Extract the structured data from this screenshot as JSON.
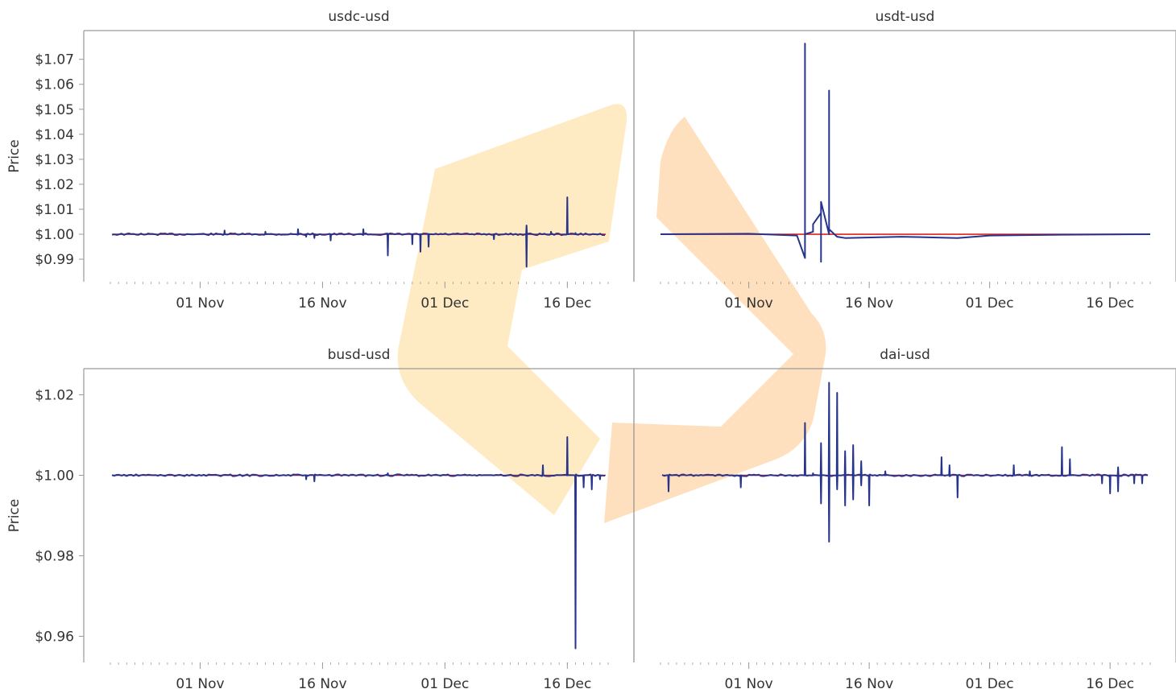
{
  "colors": {
    "series": "#27348b",
    "reference": "#e02020",
    "axis": "#999999",
    "watermark_a": "#ffd27a",
    "watermark_b": "#ffb25c"
  },
  "chart_data": [
    {
      "type": "line",
      "title": "usdc-usd",
      "xlabel": "",
      "ylabel": "Price",
      "y_tick_labels": [
        "$1.07",
        "$1.06",
        "$1.05",
        "$1.04",
        "$1.03",
        "$1.02",
        "$1.01",
        "$1.00",
        "$0.99"
      ],
      "x_tick_labels": [
        "01 Nov",
        "16 Nov",
        "01 Dec",
        "16 Dec"
      ],
      "ylim": [
        0.981,
        1.0815
      ],
      "x_range": [
        "2022-10-21",
        "2022-12-21"
      ],
      "reference": 1.0,
      "baseline": 1.0,
      "spikes": [
        {
          "x": "2022-11-04",
          "y": 1.0015
        },
        {
          "x": "2022-11-09",
          "y": 1.001
        },
        {
          "x": "2022-11-13",
          "y": 1.002
        },
        {
          "x": "2022-11-14",
          "y": 0.999
        },
        {
          "x": "2022-11-15",
          "y": 0.9985
        },
        {
          "x": "2022-11-17",
          "y": 0.9975
        },
        {
          "x": "2022-11-21",
          "y": 1.002
        },
        {
          "x": "2022-11-24",
          "y": 0.9915
        },
        {
          "x": "2022-11-27",
          "y": 0.996
        },
        {
          "x": "2022-11-28",
          "y": 0.993
        },
        {
          "x": "2022-11-29",
          "y": 0.995
        },
        {
          "x": "2022-12-07",
          "y": 0.998
        },
        {
          "x": "2022-12-11",
          "y": 1.0035
        },
        {
          "x": "2022-12-11",
          "y": 0.987
        },
        {
          "x": "2022-12-14",
          "y": 1.001
        },
        {
          "x": "2022-12-16",
          "y": 1.0148
        },
        {
          "x": "2022-12-17",
          "y": 1.0005
        }
      ]
    },
    {
      "type": "line",
      "title": "usdt-usd",
      "xlabel": "",
      "ylabel": "",
      "x_tick_labels": [
        "01 Nov",
        "16 Nov",
        "01 Dec",
        "16 Dec"
      ],
      "ylim": [
        0.981,
        1.0815
      ],
      "x_range": [
        "2022-10-21",
        "2022-12-21"
      ],
      "reference": 1.0,
      "baseline": 1.0,
      "points": [
        [
          "2022-10-21",
          1.0
        ],
        [
          "2022-11-01",
          1.0002
        ],
        [
          "2022-11-07",
          0.9995
        ],
        [
          "2022-11-08",
          0.9905
        ],
        [
          "2022-11-08",
          1.0763
        ],
        [
          "2022-11-08",
          1.0
        ],
        [
          "2022-11-09",
          1.001
        ],
        [
          "2022-11-09",
          1.004
        ],
        [
          "2022-11-10",
          1.0085
        ],
        [
          "2022-11-10",
          1.003
        ],
        [
          "2022-11-10",
          0.989
        ],
        [
          "2022-11-10",
          1.013
        ],
        [
          "2022-11-11",
          1.0
        ],
        [
          "2022-11-11",
          1.0575
        ],
        [
          "2022-11-11",
          1.002
        ],
        [
          "2022-11-12",
          0.999
        ],
        [
          "2022-11-13",
          0.9985
        ],
        [
          "2022-11-20",
          0.999
        ],
        [
          "2022-11-27",
          0.9985
        ],
        [
          "2022-12-01",
          0.9995
        ],
        [
          "2022-12-10",
          0.9998
        ],
        [
          "2022-12-21",
          1.0
        ]
      ]
    },
    {
      "type": "line",
      "title": "busd-usd",
      "xlabel": "",
      "ylabel": "Price",
      "y_tick_labels": [
        "$1.02",
        "$1.00",
        "$0.98",
        "$0.96"
      ],
      "x_tick_labels": [
        "01 Nov",
        "16 Nov",
        "01 Dec",
        "16 Dec"
      ],
      "ylim": [
        0.9535,
        1.0265
      ],
      "x_range": [
        "2022-10-21",
        "2022-12-21"
      ],
      "reference": 1.0,
      "baseline": 1.0,
      "spikes": [
        {
          "x": "2022-11-14",
          "y": 0.999
        },
        {
          "x": "2022-11-15",
          "y": 0.9985
        },
        {
          "x": "2022-11-24",
          "y": 1.0005
        },
        {
          "x": "2022-12-13",
          "y": 1.0025
        },
        {
          "x": "2022-12-16",
          "y": 1.0095
        },
        {
          "x": "2022-12-17",
          "y": 0.957
        },
        {
          "x": "2022-12-17",
          "y": 0.9965
        },
        {
          "x": "2022-12-18",
          "y": 0.997
        },
        {
          "x": "2022-12-19",
          "y": 0.9965
        },
        {
          "x": "2022-12-20",
          "y": 0.999
        }
      ]
    },
    {
      "type": "line",
      "title": "dai-usd",
      "xlabel": "",
      "ylabel": "",
      "x_tick_labels": [
        "01 Nov",
        "16 Nov",
        "01 Dec",
        "16 Dec"
      ],
      "ylim": [
        0.9535,
        1.0265
      ],
      "x_range": [
        "2022-10-21",
        "2022-12-21"
      ],
      "reference": 1.0,
      "baseline": 1.0,
      "spikes": [
        {
          "x": "2022-10-22",
          "y": 0.996
        },
        {
          "x": "2022-10-31",
          "y": 0.997
        },
        {
          "x": "2022-11-08",
          "y": 1.013
        },
        {
          "x": "2022-11-09",
          "y": 1.0005
        },
        {
          "x": "2022-11-10",
          "y": 1.008
        },
        {
          "x": "2022-11-10",
          "y": 0.993
        },
        {
          "x": "2022-11-11",
          "y": 1.023
        },
        {
          "x": "2022-11-11",
          "y": 0.9835
        },
        {
          "x": "2022-11-11",
          "y": 0.9975
        },
        {
          "x": "2022-11-12",
          "y": 1.0205
        },
        {
          "x": "2022-11-12",
          "y": 0.9965
        },
        {
          "x": "2022-11-13",
          "y": 1.006
        },
        {
          "x": "2022-11-13",
          "y": 0.9925
        },
        {
          "x": "2022-11-14",
          "y": 1.0075
        },
        {
          "x": "2022-11-14",
          "y": 0.994
        },
        {
          "x": "2022-11-15",
          "y": 1.0035
        },
        {
          "x": "2022-11-15",
          "y": 0.9975
        },
        {
          "x": "2022-11-16",
          "y": 0.9925
        },
        {
          "x": "2022-11-18",
          "y": 1.001
        },
        {
          "x": "2022-11-25",
          "y": 1.0045
        },
        {
          "x": "2022-11-26",
          "y": 1.0025
        },
        {
          "x": "2022-11-27",
          "y": 0.9945
        },
        {
          "x": "2022-12-04",
          "y": 1.0025
        },
        {
          "x": "2022-12-06",
          "y": 1.001
        },
        {
          "x": "2022-12-10",
          "y": 1.007
        },
        {
          "x": "2022-12-11",
          "y": 1.004
        },
        {
          "x": "2022-12-15",
          "y": 0.998
        },
        {
          "x": "2022-12-16",
          "y": 0.9955
        },
        {
          "x": "2022-12-17",
          "y": 1.002
        },
        {
          "x": "2022-12-17",
          "y": 0.996
        },
        {
          "x": "2022-12-19",
          "y": 0.998
        },
        {
          "x": "2022-12-20",
          "y": 0.998
        }
      ]
    }
  ]
}
